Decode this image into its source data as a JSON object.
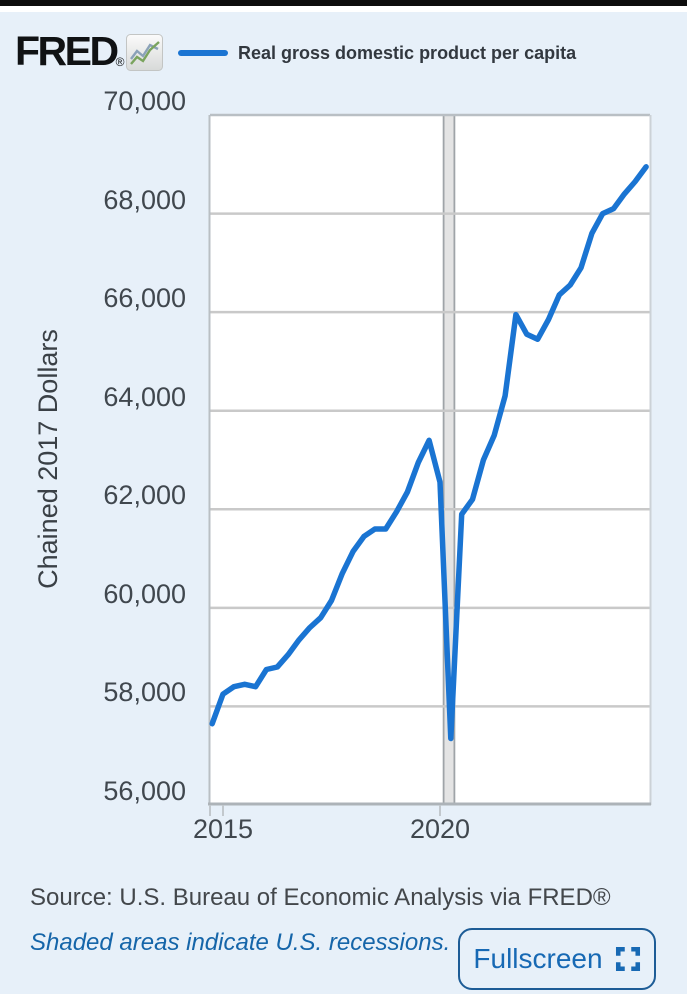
{
  "header": {
    "logo_text": "FRED",
    "logo_registered": "®",
    "legend_label": "Real gross domestic product per capita"
  },
  "chart_data": {
    "type": "line",
    "title": "Real gross domestic product per capita",
    "ylabel": "Chained 2017 Dollars",
    "xlabel": "",
    "legend_position": "top",
    "grid": "horizontal",
    "ylim": [
      56000,
      70000
    ],
    "xlim": [
      2014.7,
      2024.84
    ],
    "y_tick_values": [
      70000,
      68000,
      66000,
      64000,
      62000,
      60000,
      58000,
      56000
    ],
    "y_tick_labels": [
      "70,000",
      "68,000",
      "66,000",
      "64,000",
      "62,000",
      "60,000",
      "58,000",
      "56,000"
    ],
    "x_ticks": [
      {
        "t": 2015,
        "label": "2015"
      },
      {
        "t": 2020,
        "label": "2020"
      }
    ],
    "x_start": 2014.75,
    "x_step": 0.25,
    "x_quarters": [
      "2014 Q4",
      "2015 Q1",
      "2015 Q2",
      "2015 Q3",
      "2015 Q4",
      "2016 Q1",
      "2016 Q2",
      "2016 Q3",
      "2016 Q4",
      "2017 Q1",
      "2017 Q2",
      "2017 Q3",
      "2017 Q4",
      "2018 Q1",
      "2018 Q2",
      "2018 Q3",
      "2018 Q4",
      "2019 Q1",
      "2019 Q2",
      "2019 Q3",
      "2019 Q4",
      "2020 Q1",
      "2020 Q2",
      "2020 Q3",
      "2020 Q4",
      "2021 Q1",
      "2021 Q2",
      "2021 Q3",
      "2021 Q4",
      "2022 Q1",
      "2022 Q2",
      "2022 Q3",
      "2022 Q4",
      "2023 Q1",
      "2023 Q2",
      "2023 Q3",
      "2023 Q4",
      "2024 Q1",
      "2024 Q2",
      "2024 Q3",
      "2024 Q4"
    ],
    "series": [
      {
        "name": "Real gross domestic product per capita",
        "values": [
          57650,
          58250,
          58400,
          58450,
          58400,
          58750,
          58800,
          59050,
          59350,
          59600,
          59800,
          60150,
          60700,
          61150,
          61450,
          61600,
          61600,
          61950,
          62350,
          62950,
          63400,
          62550,
          57350,
          61900,
          62200,
          63000,
          63500,
          64300,
          65950,
          65550,
          65450,
          65850,
          66350,
          66550,
          66900,
          67600,
          68000,
          68100,
          68400,
          68650,
          68950
        ]
      }
    ],
    "recessions": [
      {
        "start": 2020.083,
        "end": 2020.333
      }
    ],
    "line_color": "#1a74d2"
  },
  "footer": {
    "source": "Source: U.S. Bureau of Economic Analysis via FRED®",
    "note": "Shaded areas indicate U.S. recessions.",
    "fullscreen_label": "Fullscreen"
  },
  "colors": {
    "background": "#e7f0f9",
    "plot_background": "#ffffff",
    "line": "#1a74d2",
    "gridline": "#c9c9c9",
    "plot_border": "#b9bfc4",
    "axis_line": "#adb3b8",
    "tick_mark": "#c2c8cd",
    "recession_fill": "#e4e4e4",
    "recession_edge": "#9fa4a8",
    "text_dark": "#40474e",
    "note_blue": "#1565a9",
    "button_blue": "#1769b4",
    "button_border": "#1d5c96"
  }
}
